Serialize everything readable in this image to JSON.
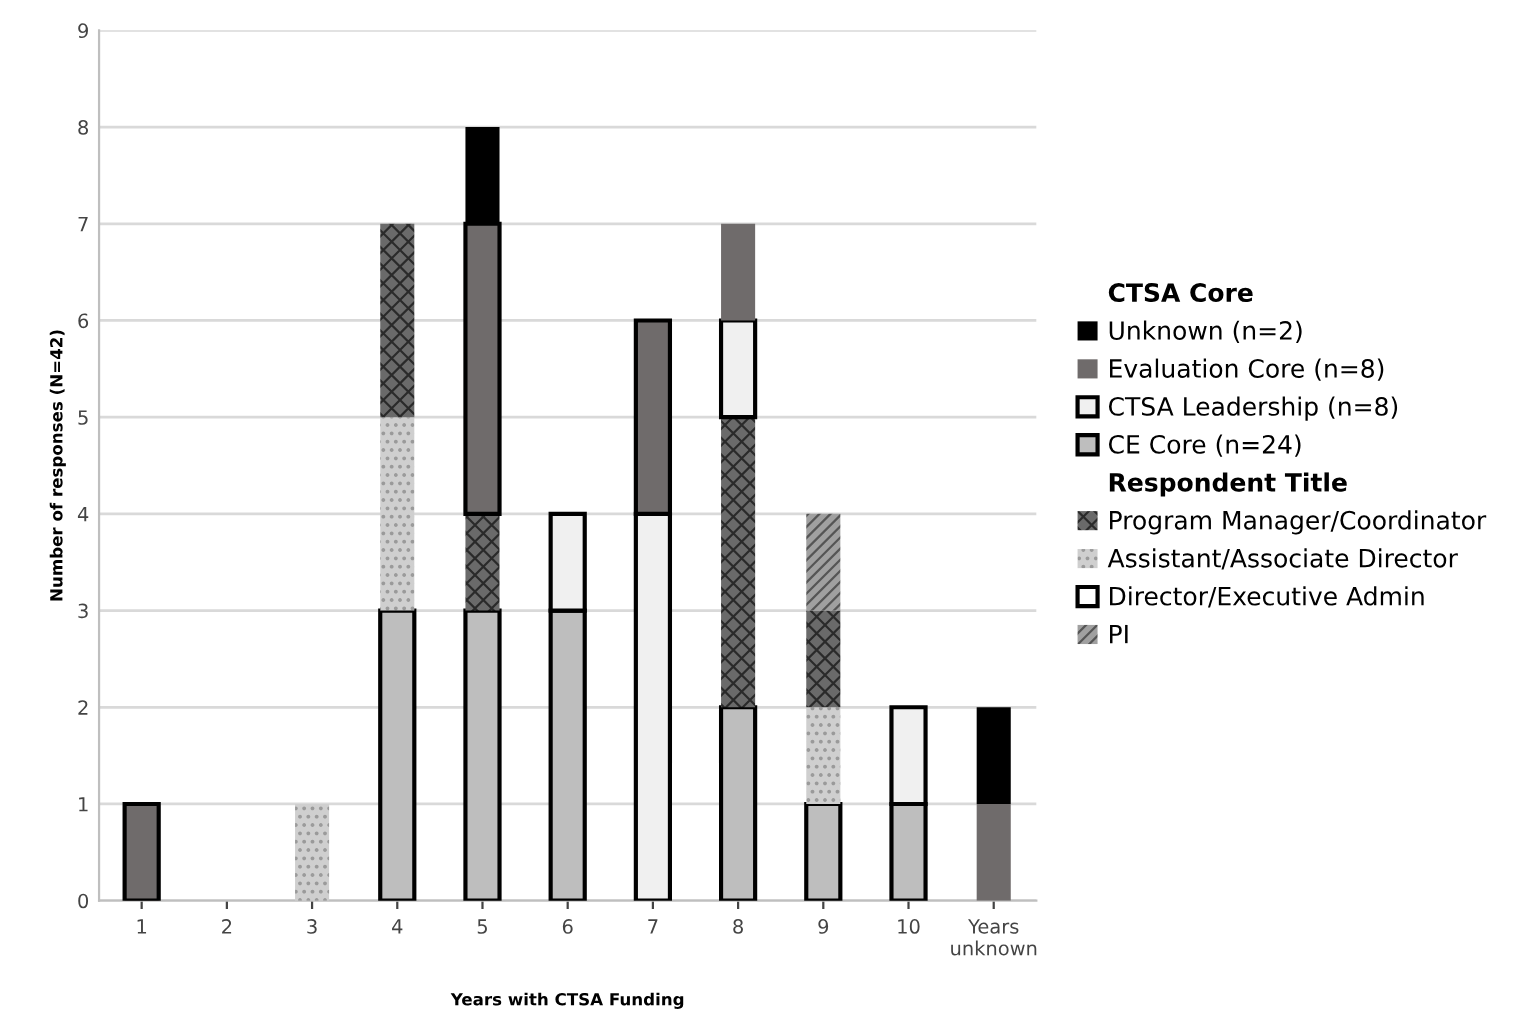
{
  "chart_data": {
    "type": "bar",
    "stacked": true,
    "xlabel": "Years with CTSA Funding",
    "ylabel": "Number of responses (N=42)",
    "categories": [
      "1",
      "2",
      "3",
      "4",
      "5",
      "6",
      "7",
      "8",
      "9",
      "10",
      "Years\nunknown"
    ],
    "ylim": [
      0,
      9
    ],
    "yticks": [
      0,
      1,
      2,
      3,
      4,
      5,
      6,
      7,
      8,
      9
    ],
    "grid": "y",
    "legend": "right",
    "legend_title": [
      "CTSA Core",
      "Respondent Title"
    ],
    "series": [
      {
        "name": "CE Core (n=24)",
        "color": "#bebebe",
        "values": [
          null,
          null,
          null,
          3,
          3,
          3,
          null,
          2,
          1,
          1,
          null
        ]
      },
      {
        "name": "Assistant/Associate Director",
        "color": "#cfcfcf",
        "values": [
          null,
          null,
          1,
          2,
          null,
          null,
          null,
          null,
          1,
          null,
          null
        ]
      },
      {
        "name": "Program Manager/Coordinator",
        "color": "#6a6a6a",
        "values": [
          null,
          null,
          null,
          2,
          1,
          null,
          null,
          3,
          1,
          null,
          null
        ]
      },
      {
        "name": "PI",
        "color": "#a0a0a0",
        "values": [
          null,
          null,
          null,
          null,
          null,
          null,
          null,
          null,
          1,
          null,
          null
        ]
      },
      {
        "name": "CTSA Leadership (n=8)",
        "color": "#f0f0f0",
        "values": [
          null,
          null,
          null,
          null,
          null,
          1,
          4,
          1,
          null,
          1,
          null
        ]
      },
      {
        "color": "#6f6b6b",
        "values": [
          1,
          null,
          null,
          null,
          3,
          null,
          2,
          null,
          null,
          null,
          null
        ]
      },
      {
        "name": "Evaluation Core (n=8)",
        "color": "#6f6b6b",
        "values": [
          null,
          null,
          null,
          null,
          null,
          null,
          null,
          1,
          null,
          null,
          1
        ]
      },
      {
        "name": "Unknown (n=2)",
        "color": "#000000",
        "values": [
          null,
          null,
          null,
          null,
          1,
          null,
          null,
          null,
          null,
          null,
          1
        ]
      },
      {
        "name": "Director/Executive Admin",
        "color": "#ffffff",
        "values": [
          null,
          null,
          null,
          null,
          null,
          null,
          null,
          null,
          null,
          null,
          null
        ]
      }
    ]
  }
}
